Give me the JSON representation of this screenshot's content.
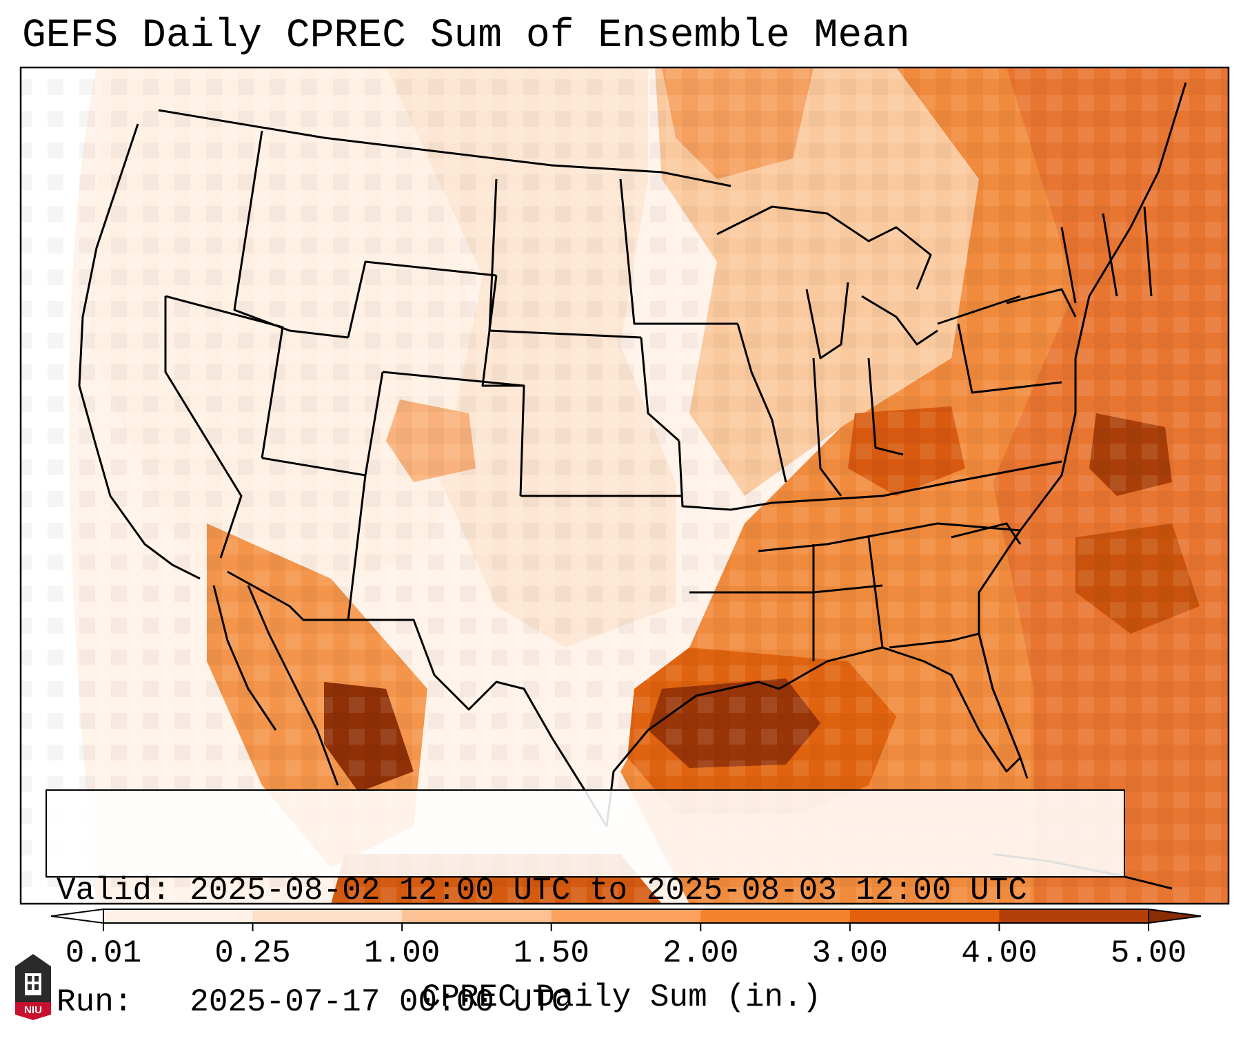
{
  "title": "GEFS Daily CPREC Sum of Ensemble Mean",
  "info": {
    "valid_label": "Valid:",
    "valid_value": "2025-08-02 12:00 UTC to 2025-08-03 12:00 UTC",
    "run_label": "Run:",
    "run_value": "2025-07-17 00:00 UTC"
  },
  "colorbar": {
    "label": "CPREC Daily Sum (in.)",
    "ticks": [
      "0.01",
      "0.25",
      "1.00",
      "1.50",
      "2.00",
      "3.00",
      "4.00",
      "5.00"
    ],
    "colors": [
      "#fff1e6",
      "#fde0c8",
      "#fdc294",
      "#fca25e",
      "#f5832e",
      "#e2600e",
      "#b34008"
    ],
    "under_color": "#ffffff",
    "over_color": "#8a2c06"
  },
  "map": {
    "region": "CONUS",
    "heavy_precip_areas": [
      "Gulf of Mexico",
      "Southeast US",
      "Atlantic coast",
      "Sierra Madre Occidental"
    ]
  },
  "logo": {
    "text": "NIU",
    "color": "#c8102e"
  }
}
